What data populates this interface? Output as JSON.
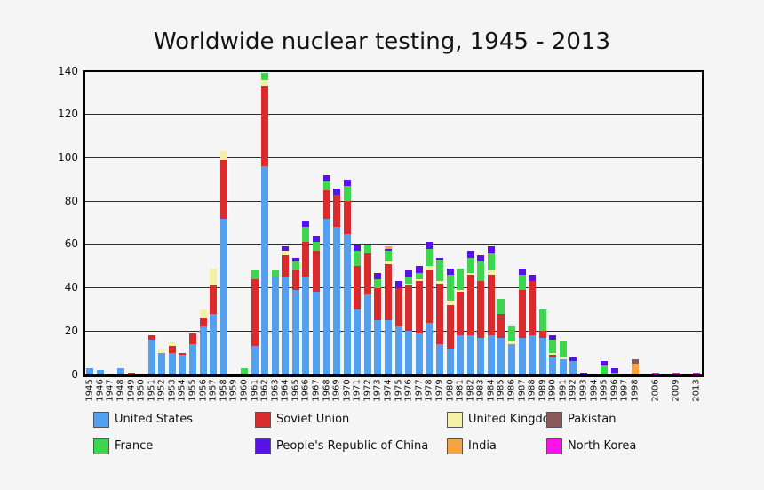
{
  "title": "Worldwide nuclear testing, 1945 - 2013",
  "colors": {
    "background": "#f5f5f5",
    "frame": "#000000",
    "grid": "#2f2f2f",
    "text": "#111111",
    "united_states": "#55a0ee",
    "soviet_union": "#d92b2b",
    "united_kingdom": "#f5f1a4",
    "france": "#3ed64e",
    "china": "#5812e6",
    "india": "#f4a445",
    "pakistan": "#8a5a5a",
    "north_korea": "#fa14e6"
  },
  "y_axis": {
    "ticks": [
      0,
      20,
      40,
      60,
      80,
      100,
      120,
      140
    ],
    "max": 140
  },
  "legend": {
    "rows": [
      [
        {
          "label": "United States",
          "color": "united_states"
        },
        {
          "label": "Soviet Union",
          "color": "soviet_union"
        },
        {
          "label": "United Kingdom",
          "color": "united_kingdom"
        },
        {
          "label": "Pakistan",
          "color": "pakistan"
        }
      ],
      [
        {
          "label": "France",
          "color": "france"
        },
        {
          "label": "People's Republic of China",
          "color": "china"
        },
        {
          "label": "India",
          "color": "india"
        },
        {
          "label": "North Korea",
          "color": "north_korea"
        }
      ]
    ]
  },
  "chart_data": {
    "type": "bar",
    "subtype": "stacked-vertical",
    "title": "Worldwide nuclear testing, 1945 - 2013",
    "xlabel": "",
    "ylabel": "",
    "ylim": [
      0,
      140
    ],
    "yticks": [
      0,
      20,
      40,
      60,
      80,
      100,
      120,
      140
    ],
    "grid": "horizontal",
    "legend_position": "bottom",
    "categories": [
      "1945",
      "1946",
      "1947",
      "1948",
      "1949",
      "1950",
      "1951",
      "1952",
      "1953",
      "1954",
      "1955",
      "1956",
      "1957",
      "1958",
      "1959",
      "1960",
      "1961",
      "1962",
      "1963",
      "1964",
      "1965",
      "1966",
      "1967",
      "1968",
      "1969",
      "1970",
      "1971",
      "1972",
      "1973",
      "1974",
      "1975",
      "1976",
      "1977",
      "1978",
      "1979",
      "1980",
      "1981",
      "1982",
      "1983",
      "1984",
      "1985",
      "1986",
      "1987",
      "1988",
      "1989",
      "1990",
      "1991",
      "1992",
      "1993",
      "1994",
      "1995",
      "1996",
      "1997",
      "1998",
      "2006",
      "2009",
      "2013"
    ],
    "axis_gaps_after": [
      "1998",
      "2006",
      "2009"
    ],
    "series": [
      {
        "name": "United States",
        "color": "united_states",
        "values": [
          3,
          2,
          0,
          3,
          0,
          0,
          16,
          10,
          10,
          9,
          14,
          22,
          28,
          72,
          0,
          0,
          13,
          96,
          45,
          45,
          39,
          45,
          38,
          72,
          68,
          65,
          30,
          37,
          25,
          25,
          22,
          20,
          19,
          24,
          14,
          12,
          18,
          18,
          17,
          18,
          17,
          14,
          17,
          18,
          17,
          8,
          7,
          6,
          0,
          0,
          0,
          0,
          0,
          0,
          0,
          0,
          0
        ]
      },
      {
        "name": "Soviet Union",
        "color": "soviet_union",
        "values": [
          0,
          0,
          0,
          0,
          1,
          0,
          2,
          0,
          3,
          1,
          5,
          4,
          13,
          27,
          0,
          0,
          31,
          37,
          0,
          10,
          9,
          16,
          19,
          13,
          15,
          15,
          20,
          19,
          15,
          26,
          18,
          21,
          24,
          24,
          28,
          20,
          20,
          28,
          26,
          28,
          11,
          0,
          22,
          25,
          3,
          1,
          0,
          0,
          0,
          0,
          0,
          0,
          0,
          0,
          0,
          0,
          0
        ]
      },
      {
        "name": "United Kingdom",
        "color": "united_kingdom",
        "values": [
          0,
          0,
          0,
          0,
          0,
          0,
          0,
          1,
          2,
          0,
          0,
          4,
          8,
          4,
          0,
          0,
          0,
          3,
          0,
          2,
          0,
          0,
          0,
          0,
          0,
          0,
          0,
          0,
          0,
          1,
          0,
          1,
          1,
          2,
          1,
          2,
          1,
          1,
          0,
          2,
          0,
          1,
          0,
          0,
          0,
          1,
          1,
          0,
          0,
          0,
          0,
          0,
          0,
          0,
          0,
          0,
          0
        ]
      },
      {
        "name": "France",
        "color": "france",
        "values": [
          0,
          0,
          0,
          0,
          0,
          0,
          0,
          0,
          0,
          0,
          0,
          0,
          0,
          0,
          0,
          3,
          4,
          3,
          3,
          0,
          4,
          7,
          4,
          4,
          0,
          7,
          7,
          4,
          4,
          5,
          0,
          3,
          3,
          8,
          10,
          12,
          10,
          7,
          9,
          8,
          7,
          7,
          7,
          0,
          10,
          6,
          7,
          0,
          0,
          0,
          4,
          1,
          0,
          0,
          0,
          0,
          0
        ]
      },
      {
        "name": "People's Republic of China",
        "color": "china",
        "values": [
          0,
          0,
          0,
          0,
          0,
          0,
          0,
          0,
          0,
          0,
          0,
          0,
          0,
          0,
          0,
          0,
          0,
          0,
          0,
          2,
          2,
          3,
          3,
          3,
          3,
          3,
          3,
          0,
          3,
          1,
          3,
          3,
          3,
          3,
          1,
          3,
          0,
          3,
          3,
          3,
          0,
          0,
          3,
          3,
          0,
          2,
          0,
          2,
          1,
          0,
          2,
          2,
          0,
          0,
          0,
          0,
          0
        ]
      },
      {
        "name": "India",
        "color": "india",
        "values": [
          0,
          0,
          0,
          0,
          0,
          0,
          0,
          0,
          0,
          0,
          0,
          0,
          0,
          0,
          0,
          0,
          0,
          0,
          0,
          0,
          0,
          0,
          0,
          0,
          0,
          0,
          0,
          0,
          0,
          1,
          0,
          0,
          0,
          0,
          0,
          0,
          0,
          0,
          0,
          0,
          0,
          0,
          0,
          0,
          0,
          0,
          0,
          0,
          0,
          0,
          0,
          0,
          0,
          5,
          0,
          0,
          0
        ]
      },
      {
        "name": "Pakistan",
        "color": "pakistan",
        "values": [
          0,
          0,
          0,
          0,
          0,
          0,
          0,
          0,
          0,
          0,
          0,
          0,
          0,
          0,
          0,
          0,
          0,
          0,
          0,
          0,
          0,
          0,
          0,
          0,
          0,
          0,
          0,
          0,
          0,
          0,
          0,
          0,
          0,
          0,
          0,
          0,
          0,
          0,
          0,
          0,
          0,
          0,
          0,
          0,
          0,
          0,
          0,
          0,
          0,
          0,
          0,
          0,
          0,
          2,
          0,
          0,
          0
        ]
      },
      {
        "name": "North Korea",
        "color": "north_korea",
        "values": [
          0,
          0,
          0,
          0,
          0,
          0,
          0,
          0,
          0,
          0,
          0,
          0,
          0,
          0,
          0,
          0,
          0,
          0,
          0,
          0,
          0,
          0,
          0,
          0,
          0,
          0,
          0,
          0,
          0,
          0,
          0,
          0,
          0,
          0,
          0,
          0,
          0,
          0,
          0,
          0,
          0,
          0,
          0,
          0,
          0,
          0,
          0,
          0,
          0,
          0,
          0,
          0,
          0,
          0,
          1,
          1,
          1
        ]
      }
    ]
  }
}
